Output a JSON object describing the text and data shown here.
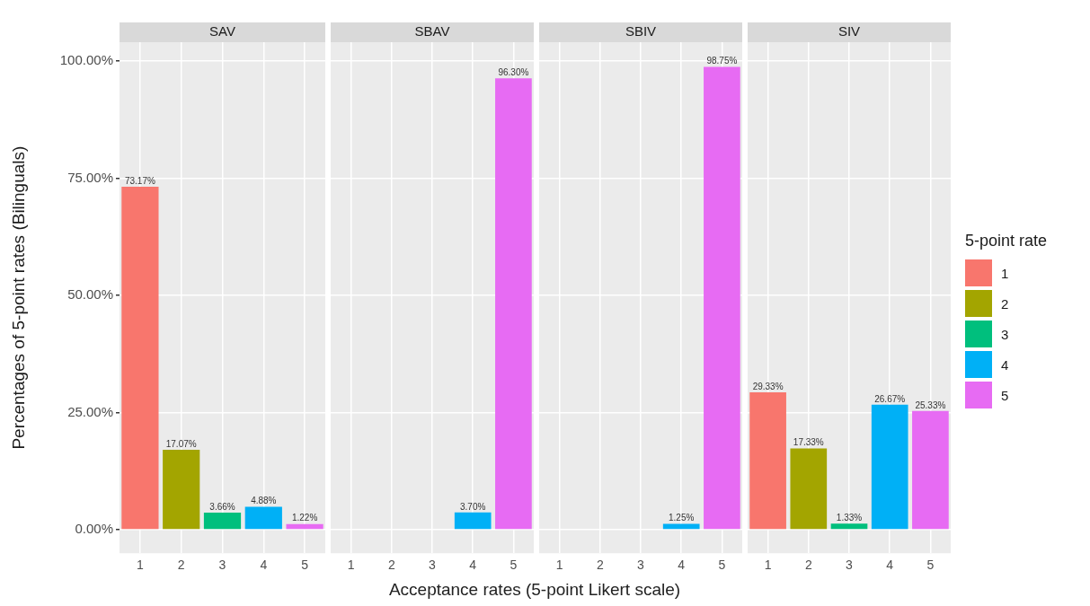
{
  "chart_data": [
    {
      "type": "bar",
      "title": "SAV",
      "ylabel": "Percentages of 5-point rates (Bilinguals)",
      "xlabel": "Acceptance rates (5-point Likert scale)",
      "categories": [
        "1",
        "2",
        "3",
        "4",
        "5"
      ],
      "series": [
        {
          "name": "1",
          "color": "#f8766d",
          "values": [
            73.17,
            null,
            null,
            null,
            null
          ],
          "value_labels": [
            "73.17%",
            null,
            null,
            null,
            null
          ]
        },
        {
          "name": "2",
          "color": "#a3a500",
          "values": [
            null,
            17.07,
            null,
            null,
            null
          ],
          "value_labels": [
            null,
            "17.07%",
            null,
            null,
            null
          ]
        },
        {
          "name": "3",
          "color": "#00bf7d",
          "values": [
            null,
            null,
            3.66,
            null,
            null
          ],
          "value_labels": [
            null,
            null,
            "3.66%",
            null,
            null
          ]
        },
        {
          "name": "4",
          "color": "#00b0f6",
          "values": [
            null,
            null,
            null,
            4.88,
            null
          ],
          "value_labels": [
            null,
            null,
            null,
            "4.88%",
            null
          ]
        },
        {
          "name": "5",
          "color": "#e76bf3",
          "values": [
            null,
            null,
            null,
            null,
            1.22
          ],
          "value_labels": [
            null,
            null,
            null,
            null,
            "1.22%"
          ]
        }
      ],
      "ylim": [
        -5,
        104
      ],
      "yticks": [
        {
          "value": 0,
          "label": "0.00%"
        },
        {
          "value": 25,
          "label": "25.00%"
        },
        {
          "value": 50,
          "label": "50.00%"
        },
        {
          "value": 75,
          "label": "75.00%"
        },
        {
          "value": 100,
          "label": "100.00%"
        }
      ],
      "grid": true,
      "legend": "right",
      "legend_title": "5-point rate"
    },
    {
      "type": "bar",
      "title": "SBAV",
      "categories": [
        "1",
        "2",
        "3",
        "4",
        "5"
      ],
      "series": [
        {
          "name": "1",
          "color": "#f8766d",
          "values": [
            null,
            null,
            null,
            null,
            null
          ]
        },
        {
          "name": "2",
          "color": "#a3a500",
          "values": [
            null,
            null,
            null,
            null,
            null
          ]
        },
        {
          "name": "3",
          "color": "#00bf7d",
          "values": [
            null,
            null,
            null,
            null,
            null
          ]
        },
        {
          "name": "4",
          "color": "#00b0f6",
          "values": [
            null,
            null,
            null,
            3.7,
            null
          ],
          "value_labels": [
            null,
            null,
            null,
            "3.70%",
            null
          ]
        },
        {
          "name": "5",
          "color": "#e76bf3",
          "values": [
            null,
            null,
            null,
            null,
            96.3
          ],
          "value_labels": [
            null,
            null,
            null,
            null,
            "96.30%"
          ]
        }
      ],
      "ylim": [
        -5,
        104
      ],
      "yticks": [
        0,
        25,
        50,
        75,
        100
      ],
      "grid": true,
      "tick_labels": "x"
    },
    {
      "type": "bar",
      "title": "SBIV",
      "categories": [
        "1",
        "2",
        "3",
        "4",
        "5"
      ],
      "series": [
        {
          "name": "1",
          "color": "#f8766d",
          "values": [
            null,
            null,
            null,
            null,
            null
          ]
        },
        {
          "name": "2",
          "color": "#a3a500",
          "values": [
            null,
            null,
            null,
            null,
            null
          ]
        },
        {
          "name": "3",
          "color": "#00bf7d",
          "values": [
            null,
            null,
            null,
            null,
            null
          ]
        },
        {
          "name": "4",
          "color": "#00b0f6",
          "values": [
            null,
            null,
            null,
            1.25,
            null
          ],
          "value_labels": [
            null,
            null,
            null,
            "1.25%",
            null
          ]
        },
        {
          "name": "5",
          "color": "#e76bf3",
          "values": [
            null,
            null,
            null,
            null,
            98.75
          ],
          "value_labels": [
            null,
            null,
            null,
            null,
            "98.75%"
          ]
        }
      ],
      "ylim": [
        -5,
        104
      ],
      "yticks": [
        0,
        25,
        50,
        75,
        100
      ],
      "grid": true,
      "tick_labels": "x"
    },
    {
      "type": "bar",
      "title": "SIV",
      "categories": [
        "1",
        "2",
        "3",
        "4",
        "5"
      ],
      "series": [
        {
          "name": "1",
          "color": "#f8766d",
          "values": [
            29.33,
            null,
            null,
            null,
            null
          ],
          "value_labels": [
            "29.33%",
            null,
            null,
            null,
            null
          ]
        },
        {
          "name": "2",
          "color": "#a3a500",
          "values": [
            null,
            17.33,
            null,
            null,
            null
          ],
          "value_labels": [
            null,
            "17.33%",
            null,
            null,
            null
          ]
        },
        {
          "name": "3",
          "color": "#00bf7d",
          "values": [
            null,
            null,
            1.33,
            null,
            null
          ],
          "value_labels": [
            null,
            null,
            "1.33%",
            null,
            null
          ]
        },
        {
          "name": "4",
          "color": "#00b0f6",
          "values": [
            null,
            null,
            null,
            26.67,
            null
          ],
          "value_labels": [
            null,
            null,
            null,
            "26.67%",
            null
          ]
        },
        {
          "name": "5",
          "color": "#e76bf3",
          "values": [
            null,
            null,
            null,
            null,
            25.33
          ],
          "value_labels": [
            null,
            null,
            null,
            null,
            "25.33%"
          ]
        }
      ],
      "ylim": [
        -5,
        104
      ],
      "yticks": [
        0,
        25,
        50,
        75,
        100
      ],
      "grid": true,
      "tick_labels": "x"
    }
  ]
}
